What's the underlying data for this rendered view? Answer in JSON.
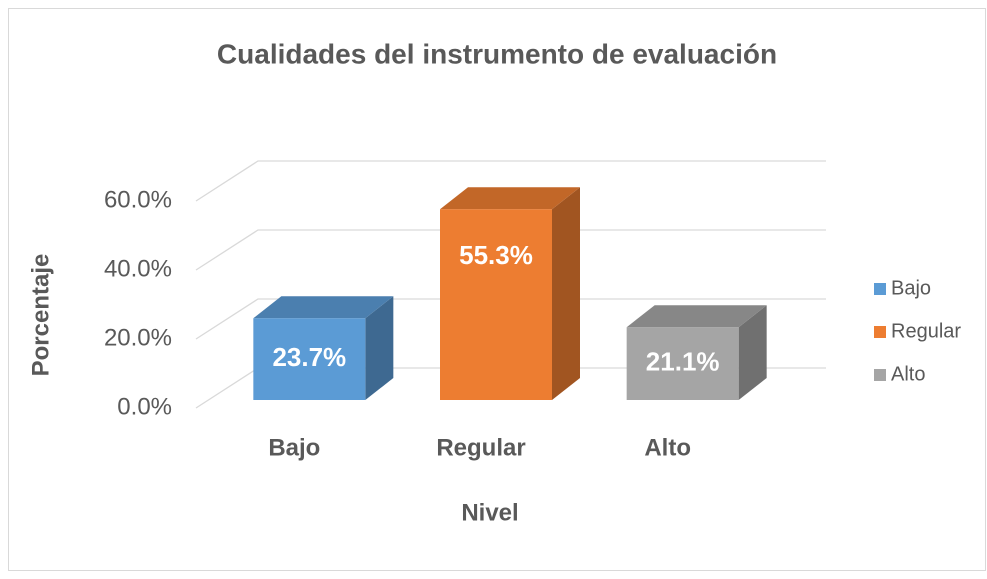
{
  "chart_data": {
    "type": "bar3d",
    "title": "Cualidades del instrumento de evaluación",
    "x_label": "Nivel",
    "y_label": "Porcentaje",
    "categories": [
      "Bajo",
      "Regular",
      "Alto"
    ],
    "values": [
      23.7,
      55.3,
      21.1
    ],
    "value_labels": [
      "23.7%",
      "55.3%",
      "21.1%"
    ],
    "colors": [
      "#5b9bd5",
      "#ed7d31",
      "#a5a5a5"
    ],
    "ylim": [
      0,
      60
    ],
    "yticks": [
      {
        "value": 0,
        "label": "0.0%"
      },
      {
        "value": 20,
        "label": "20.0%"
      },
      {
        "value": 40,
        "label": "40.0%"
      },
      {
        "value": 60,
        "label": "60.0%"
      }
    ],
    "grid": true,
    "legend": "right"
  }
}
